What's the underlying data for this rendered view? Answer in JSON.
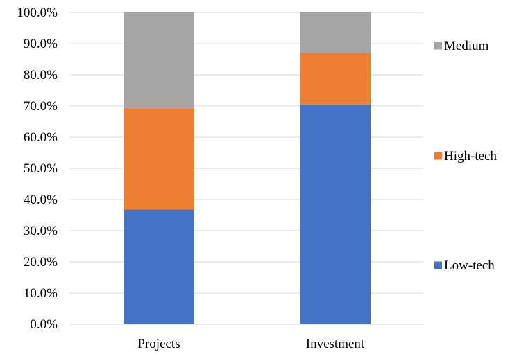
{
  "chart_data": {
    "type": "bar",
    "stacked": true,
    "categories": [
      "Projects",
      "Investment"
    ],
    "series": [
      {
        "name": "Low-tech",
        "values": [
          36.8,
          70.5
        ],
        "color": "#4472C4"
      },
      {
        "name": "High-tech",
        "values": [
          32.5,
          16.5
        ],
        "color": "#ED7D31"
      },
      {
        "name": "Medium",
        "values": [
          30.7,
          13.0
        ],
        "color": "#A5A5A5"
      }
    ],
    "y_ticks": [
      "0.0%",
      "10.0%",
      "20.0%",
      "30.0%",
      "40.0%",
      "50.0%",
      "60.0%",
      "70.0%",
      "80.0%",
      "90.0%",
      "100.0%"
    ],
    "ylim": [
      0,
      100
    ],
    "grid": true,
    "legend": {
      "placement": "right",
      "order": [
        "Medium",
        "High-tech",
        "Low-tech"
      ]
    },
    "title": "",
    "xlabel": "",
    "ylabel": ""
  }
}
